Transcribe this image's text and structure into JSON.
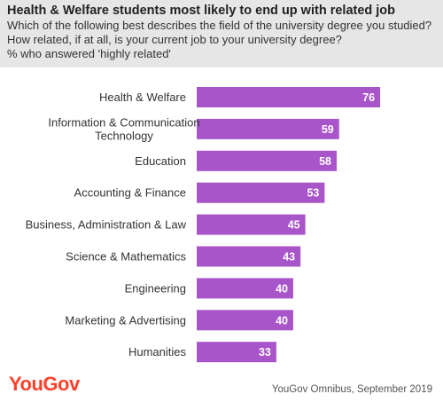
{
  "header": {
    "title": "Health & Welfare students most likely to end up with related job",
    "subtitle": "Which of the following best describes the field of the university degree you studied? How related, if at all, is your current job to your university degree?",
    "note": "% who answered 'highly related'"
  },
  "footer": {
    "logo": "YouGov",
    "source": "YouGov Omnibus, September 2019"
  },
  "colors": {
    "bar": "#a855c9",
    "logo": "#ff412c",
    "header_bg": "#e6e6e6"
  },
  "chart_data": {
    "type": "bar",
    "orientation": "horizontal",
    "title": "Health & Welfare students most likely to end up with related job",
    "categories": [
      [
        "Health & Welfare"
      ],
      [
        "Information & Communication",
        "Technology"
      ],
      [
        "Education"
      ],
      [
        "Accounting & Finance"
      ],
      [
        "Business, Administration & Law"
      ],
      [
        "Science & Mathematics"
      ],
      [
        "Engineering"
      ],
      [
        "Marketing & Advertising"
      ],
      [
        "Humanities"
      ]
    ],
    "values": [
      76,
      59,
      58,
      53,
      45,
      43,
      40,
      40,
      33
    ],
    "data_labels": [
      "76",
      "59",
      "58",
      "53",
      "45",
      "43",
      "40",
      "40",
      "33"
    ],
    "xlim": [
      0,
      100
    ],
    "grid": false,
    "legend": "none"
  }
}
